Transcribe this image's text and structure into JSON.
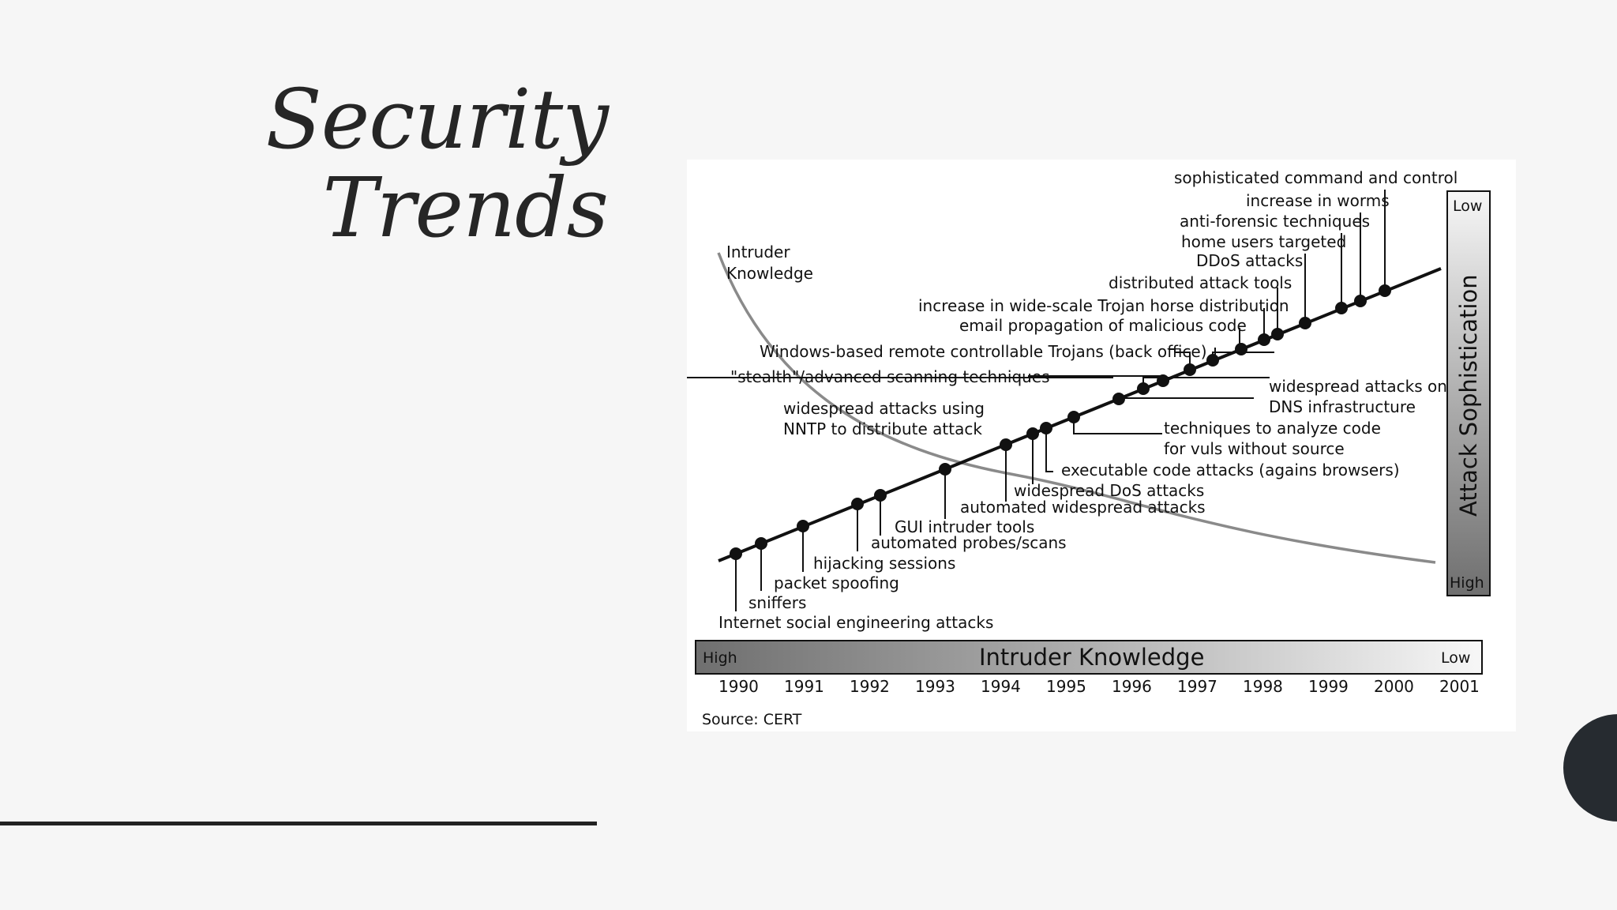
{
  "slide": {
    "title_line1": "Security",
    "title_line2": "Trends"
  },
  "diagram": {
    "intruder_curve_label": [
      "Intruder",
      "Knowledge"
    ],
    "horizontal_bar": {
      "title": "Intruder Knowledge",
      "left_label": "High",
      "right_label": "Low"
    },
    "vertical_bar": {
      "title": "Attack Sophistication",
      "top_label": "Low",
      "bottom_label": "High"
    },
    "years": [
      "1990",
      "1991",
      "1992",
      "1993",
      "1994",
      "1995",
      "1996",
      "1997",
      "1998",
      "1999",
      "2000",
      "2001"
    ],
    "source": "Source: CERT",
    "events": [
      "Internet social engineering attacks",
      "sniffers",
      "packet spoofing",
      "hijacking sessions",
      "automated probes/scans",
      "GUI intruder tools",
      "automated widespread attacks",
      "widespread DoS attacks",
      "executable code attacks (agains browsers)",
      "techniques to analyze code",
      "for vuls without source",
      "widespread attacks on",
      "DNS infrastructure",
      "widespread attacks using",
      "NNTP to distribute attack",
      "\"stealth\"/advanced scanning techniques",
      "Windows-based remote controllable Trojans (back office)",
      "email propagation of malicious code",
      "increase in wide-scale Trojan horse distribution",
      "distributed attack tools",
      "DDoS attacks",
      "home users targeted",
      "anti-forensic techniques",
      "increase in worms",
      "sophisticated command and control"
    ]
  },
  "colors": {
    "background": "#f6f6f6",
    "panel": "#ffffff",
    "ink": "#111111",
    "curve": "#8a8a8a",
    "corner_shape": "#262b30"
  }
}
